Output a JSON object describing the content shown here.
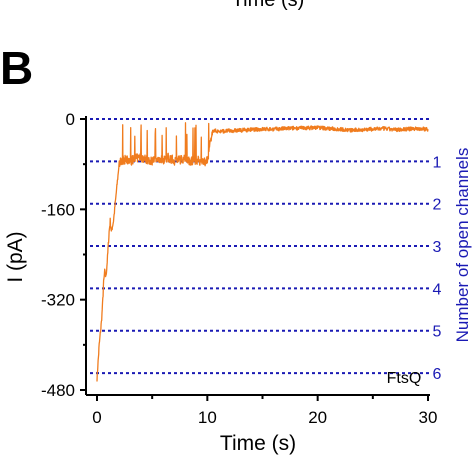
{
  "panel_letter": "B",
  "previous_panel_xlabel": "Time (s)",
  "chart_data": {
    "type": "line",
    "title": "",
    "xlabel": "Time (s)",
    "ylabel": "I (pA)",
    "right_ylabel": "Number of open channels",
    "annotation": "FtsQ",
    "xlim": [
      -1,
      30
    ],
    "ylim": [
      -480,
      0
    ],
    "x_ticks": [
      0,
      10,
      20,
      30
    ],
    "y_ticks": [
      0,
      -160,
      -320,
      -480
    ],
    "grid": false,
    "series": [
      {
        "color": "#f07c1e",
        "x": [
          0,
          0.1,
          0.2,
          0.3,
          0.4,
          0.5,
          0.6,
          0.7,
          0.8,
          0.9,
          1.0,
          1.1,
          1.2,
          1.3,
          1.4,
          1.5,
          1.6,
          1.7,
          1.8,
          1.9,
          2.0,
          2.2,
          2.5,
          3,
          3.5,
          4,
          4.5,
          5,
          5.5,
          6,
          6.5,
          7,
          7.5,
          8,
          8.5,
          9,
          9.5,
          10,
          10.3,
          10.5,
          11,
          12,
          13,
          14,
          15,
          16,
          17,
          18,
          19,
          20,
          21,
          22,
          23,
          24,
          25,
          26,
          27,
          28,
          29,
          30
        ],
        "y": [
          -460,
          -430,
          -400,
          -380,
          -360,
          -330,
          -290,
          -270,
          -280,
          -260,
          -230,
          -200,
          -180,
          -200,
          -190,
          -180,
          -160,
          -140,
          -120,
          -100,
          -80,
          -74,
          -72,
          -75,
          -70,
          -68,
          -72,
          -74,
          -70,
          -72,
          -68,
          -74,
          -72,
          -70,
          -74,
          -72,
          -76,
          -74,
          -40,
          -20,
          -22,
          -21,
          -20,
          -19,
          -18,
          -18,
          -17,
          -16,
          -16,
          -15,
          -17,
          -18,
          -20,
          -19,
          -18,
          -17,
          -19,
          -18,
          -17,
          -18
        ]
      }
    ],
    "channel_levels": [
      {
        "label": "1",
        "value": -75
      },
      {
        "label": "2",
        "value": -150
      },
      {
        "label": "3",
        "value": -225
      },
      {
        "label": "4",
        "value": -300
      },
      {
        "label": "5",
        "value": -375
      },
      {
        "label": "6",
        "value": -450
      }
    ],
    "colors": {
      "trace": "#f07c1e",
      "levels": "#1a1ab4",
      "axes": "#000000"
    }
  }
}
